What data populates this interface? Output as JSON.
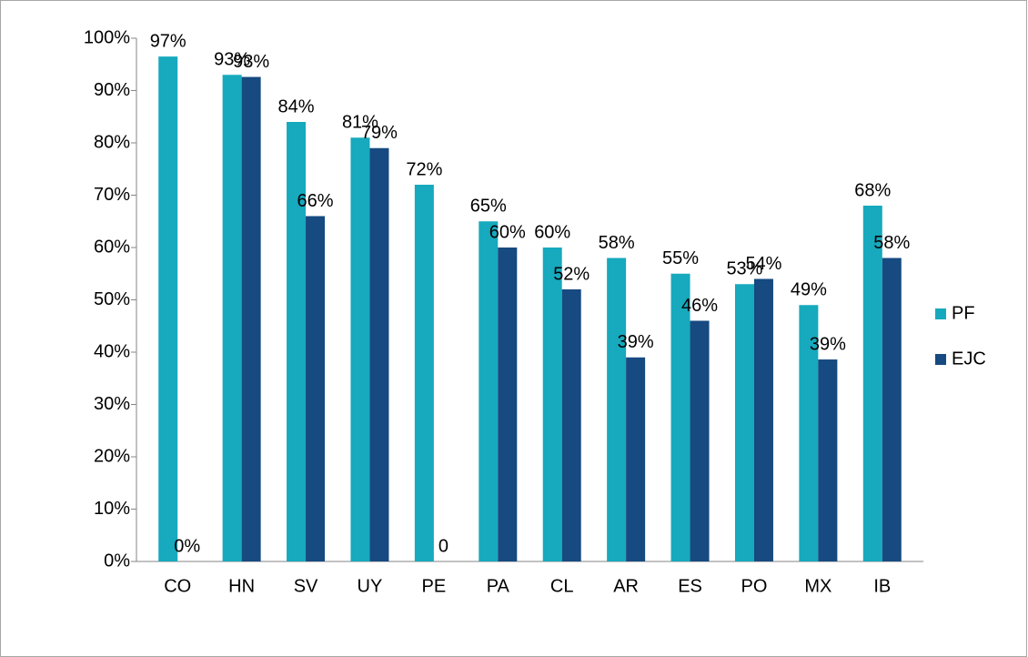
{
  "chart_data": {
    "type": "bar",
    "categories": [
      "CO",
      "HN",
      "SV",
      "UY",
      "PE",
      "PA",
      "CL",
      "AR",
      "ES",
      "PO",
      "MX",
      "IB"
    ],
    "series": [
      {
        "name": "PF",
        "color": "#17a9bd",
        "values": [
          96.5,
          93,
          84,
          81,
          72,
          65,
          60,
          58,
          55,
          53,
          49,
          68
        ],
        "value_labels": [
          "97%",
          "93%",
          "84%",
          "81%",
          "72%",
          "65%",
          "60%",
          "58%",
          "55%",
          "53%",
          "49%",
          "68%"
        ]
      },
      {
        "name": "EJC",
        "color": "#164a80",
        "values": [
          0,
          92.6,
          66,
          79,
          0,
          60,
          52,
          39,
          46,
          54,
          38.6,
          58
        ],
        "value_labels": [
          "0%",
          "93%",
          "66%",
          "79%",
          "0",
          "60%",
          "52%",
          "39%",
          "46%",
          "54%",
          "39%",
          "58%"
        ]
      }
    ],
    "ylim": [
      0,
      100
    ],
    "yticks": [
      {
        "value": 0,
        "label": "0%"
      },
      {
        "value": 10,
        "label": "10%"
      },
      {
        "value": 20,
        "label": "20%"
      },
      {
        "value": 30,
        "label": "30%"
      },
      {
        "value": 40,
        "label": "40%"
      },
      {
        "value": 50,
        "label": "50%"
      },
      {
        "value": 60,
        "label": "60%"
      },
      {
        "value": 70,
        "label": "70%"
      },
      {
        "value": 80,
        "label": "80%"
      },
      {
        "value": 90,
        "label": "90%"
      },
      {
        "value": 100,
        "label": "100%"
      }
    ],
    "legend": "right",
    "grid": false
  }
}
